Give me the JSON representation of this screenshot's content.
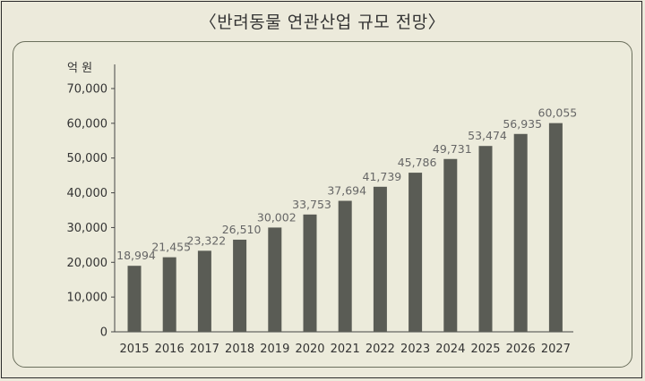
{
  "title": "〈반려동물 연관산업 규모 전망〉",
  "chart_data": {
    "type": "bar",
    "title": "〈반려동물 연관산업 규모 전망〉",
    "ylabel": "억 원",
    "xlabel": "",
    "ylim": [
      0,
      70000
    ],
    "yticks": [
      "0",
      "10,000",
      "20,000",
      "30,000",
      "40,000",
      "50,000",
      "60,000",
      "70,000"
    ],
    "ytick_values": [
      0,
      10000,
      20000,
      30000,
      40000,
      50000,
      60000,
      70000
    ],
    "categories": [
      "2015",
      "2016",
      "2017",
      "2018",
      "2019",
      "2020",
      "2021",
      "2022",
      "2023",
      "2024",
      "2025",
      "2026",
      "2027"
    ],
    "values": [
      18994,
      21455,
      23322,
      26510,
      30002,
      33753,
      37694,
      41739,
      45786,
      49731,
      53474,
      56935,
      60055
    ],
    "value_labels": [
      "18,994",
      "21,455",
      "23,322",
      "26,510",
      "30,002",
      "33,753",
      "37,694",
      "41,739",
      "45,786",
      "49,731",
      "53,474",
      "56,935",
      "60,055"
    ],
    "grid": false,
    "bar_color": "#5a5c55"
  }
}
